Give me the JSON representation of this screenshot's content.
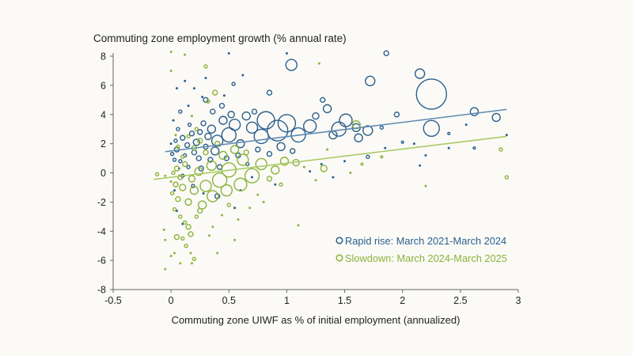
{
  "chart_data": {
    "type": "scatter",
    "title": "Commuting zone employment growth (% annual rate)",
    "xlabel": "Commuting zone UIWF as % of initial employment (annualized)",
    "ylabel": "",
    "xlim": [
      -0.5,
      3
    ],
    "ylim": [
      -8,
      8
    ],
    "xticks": [
      "-0.5",
      "0",
      "0.5",
      "1",
      "1.5",
      "2",
      "2.5",
      "3"
    ],
    "yticks": [
      "-8",
      "-6",
      "-4",
      "-2",
      "0",
      "2",
      "4",
      "6",
      "8"
    ],
    "grid": false,
    "legend_position": "bottom-right",
    "point_format": "[x, y, relative bubble size]",
    "series": [
      {
        "name": "Rapid rise: March 2021-March 2024",
        "color": "#2b5f8e",
        "trend_color": "#5e89b2",
        "trend": [
          [
            -0.05,
            1.45
          ],
          [
            2.9,
            4.35
          ]
        ],
        "points": [
          [
            0.5,
            8.2,
            1
          ],
          [
            1.0,
            8.2,
            1
          ],
          [
            1.86,
            8.2,
            2
          ],
          [
            1.04,
            7.4,
            4
          ],
          [
            2.15,
            6.8,
            3.5
          ],
          [
            1.72,
            6.3,
            3.5
          ],
          [
            0.54,
            6.1,
            1.5
          ],
          [
            0.62,
            6.7,
            1
          ],
          [
            0.12,
            6.3,
            1
          ],
          [
            0.3,
            6.5,
            1
          ],
          [
            0.85,
            5.5,
            2
          ],
          [
            1.31,
            5.0,
            2
          ],
          [
            2.25,
            5.4,
            10
          ],
          [
            0.46,
            5.3,
            1
          ],
          [
            0.3,
            5.0,
            2
          ],
          [
            0.27,
            5.2,
            1
          ],
          [
            0.05,
            5.8,
            1
          ],
          [
            0.2,
            5.8,
            1
          ],
          [
            1.51,
            3.6,
            4.5
          ],
          [
            1.35,
            4.4,
            3
          ],
          [
            1.25,
            3.9,
            2.5
          ],
          [
            1.6,
            3.1,
            3
          ],
          [
            1.7,
            2.9,
            3.5
          ],
          [
            1.2,
            3.2,
            4.5
          ],
          [
            1.0,
            3.4,
            6
          ],
          [
            0.92,
            2.9,
            7
          ],
          [
            1.1,
            2.6,
            5
          ],
          [
            0.82,
            3.6,
            6
          ],
          [
            0.78,
            2.5,
            5
          ],
          [
            0.7,
            3.1,
            4
          ],
          [
            1.4,
            2.6,
            3
          ],
          [
            1.45,
            3.0,
            5
          ],
          [
            1.62,
            2.4,
            3
          ],
          [
            1.82,
            3.1,
            1.5
          ],
          [
            1.95,
            4.0,
            2
          ],
          [
            2.25,
            3.05,
            5.5
          ],
          [
            2.62,
            4.2,
            3
          ],
          [
            2.81,
            3.8,
            3
          ],
          [
            2.0,
            2.1,
            1.2
          ],
          [
            1.85,
            1.7,
            1
          ],
          [
            2.1,
            2.0,
            1
          ],
          [
            2.4,
            2.7,
            1.2
          ],
          [
            2.55,
            3.3,
            1
          ],
          [
            2.9,
            2.6,
            1
          ],
          [
            2.4,
            1.7,
            1
          ],
          [
            2.2,
            1.2,
            1
          ],
          [
            1.7,
            1.1,
            1.5
          ],
          [
            1.5,
            0.8,
            1
          ],
          [
            1.3,
            0.6,
            1
          ],
          [
            1.2,
            0.1,
            1
          ],
          [
            1.4,
            -0.3,
            1
          ],
          [
            2.62,
            1.7,
            1.2
          ],
          [
            2.15,
            0.5,
            1
          ],
          [
            0.6,
            -1.2,
            1
          ],
          [
            0.9,
            -0.8,
            1
          ],
          [
            0.4,
            -1.6,
            2
          ],
          [
            0.55,
            -2.4,
            1
          ],
          [
            0.65,
            3.9,
            3
          ],
          [
            0.55,
            3.3,
            4
          ],
          [
            0.5,
            2.6,
            5
          ],
          [
            0.45,
            3.6,
            3
          ],
          [
            0.4,
            2.2,
            4
          ],
          [
            0.38,
            1.5,
            3
          ],
          [
            0.35,
            3.0,
            3
          ],
          [
            0.32,
            2.5,
            2.5
          ],
          [
            0.3,
            1.8,
            2
          ],
          [
            0.28,
            3.4,
            2
          ],
          [
            0.25,
            2.8,
            2
          ],
          [
            0.22,
            2.1,
            2.5
          ],
          [
            0.2,
            1.4,
            2
          ],
          [
            0.18,
            2.7,
            2
          ],
          [
            0.16,
            3.3,
            1.5
          ],
          [
            0.14,
            1.9,
            2
          ],
          [
            0.12,
            1.2,
            1.5
          ],
          [
            0.1,
            2.4,
            2
          ],
          [
            0.08,
            0.8,
            1.5
          ],
          [
            0.06,
            3.0,
            1.5
          ],
          [
            0.05,
            1.6,
            2
          ],
          [
            0.04,
            2.2,
            1.5
          ],
          [
            0.03,
            0.9,
            1.5
          ],
          [
            0.02,
            3.6,
            1
          ],
          [
            0.01,
            1.3,
            1.5
          ],
          [
            0.0,
            2.0,
            1
          ],
          [
            0.6,
            2.0,
            3
          ],
          [
            0.58,
            1.2,
            2
          ],
          [
            0.48,
            1.0,
            2
          ],
          [
            0.42,
            0.4,
            2
          ],
          [
            0.34,
            0.9,
            2
          ],
          [
            0.26,
            0.3,
            2
          ],
          [
            0.24,
            1.0,
            2
          ],
          [
            0.15,
            0.4,
            1.5
          ],
          [
            0.1,
            -0.2,
            1.5
          ],
          [
            0.07,
            0.3,
            1
          ],
          [
            0.19,
            -0.9,
            1.5
          ],
          [
            0.28,
            -1.4,
            1
          ],
          [
            0.08,
            4.2,
            1.5
          ],
          [
            0.15,
            4.6,
            1
          ],
          [
            0.36,
            4.2,
            2
          ],
          [
            0.44,
            4.6,
            2
          ],
          [
            0.52,
            4.0,
            2.5
          ],
          [
            0.72,
            4.2,
            2
          ],
          [
            0.75,
            1.6,
            2
          ],
          [
            0.85,
            1.3,
            2
          ],
          [
            0.95,
            1.8,
            3
          ],
          [
            1.05,
            1.5,
            2
          ],
          [
            0.66,
            0.6,
            1.5
          ],
          [
            0.7,
            -0.3,
            1
          ],
          [
            0.03,
            -1.2,
            1
          ],
          [
            0.05,
            -2.6,
            1
          ],
          [
            0.1,
            -3.5,
            1
          ]
        ]
      },
      {
        "name": "Slowdown: March 2024-March 2025",
        "color": "#8bb33b",
        "trend_color": "#a6c95f",
        "trend": [
          [
            -0.15,
            -0.45
          ],
          [
            2.9,
            2.5
          ]
        ],
        "points": [
          [
            0.0,
            8.3,
            1
          ],
          [
            0.12,
            8.1,
            1
          ],
          [
            0.0,
            7.0,
            1
          ],
          [
            0.3,
            7.3,
            1.5
          ],
          [
            1.28,
            7.5,
            1
          ],
          [
            0.38,
            5.5,
            2
          ],
          [
            1.6,
            3.3,
            3
          ],
          [
            2.9,
            -0.3,
            1.5
          ],
          [
            2.85,
            1.6,
            1.5
          ],
          [
            1.82,
            1.1,
            1.2
          ],
          [
            1.65,
            0.6,
            1.2
          ],
          [
            1.32,
            0.3,
            2.5
          ],
          [
            1.1,
            -3.6,
            1
          ],
          [
            0.55,
            -4.6,
            1
          ],
          [
            2.2,
            -0.9,
            1
          ],
          [
            1.35,
            1.6,
            1
          ],
          [
            1.55,
            0.0,
            1
          ],
          [
            0.32,
            4.9,
            1.5
          ],
          [
            0.18,
            3.9,
            1
          ],
          [
            0.98,
            0.8,
            3
          ],
          [
            1.08,
            0.7,
            2.5
          ],
          [
            0.9,
            0.2,
            3
          ],
          [
            0.78,
            0.6,
            4
          ],
          [
            0.7,
            -0.2,
            5
          ],
          [
            0.62,
            0.9,
            4
          ],
          [
            0.6,
            -0.8,
            4.5
          ],
          [
            0.5,
            0.2,
            5
          ],
          [
            0.48,
            -1.2,
            4
          ],
          [
            0.42,
            -0.5,
            5
          ],
          [
            0.36,
            -1.6,
            4
          ],
          [
            0.35,
            0.5,
            3.5
          ],
          [
            0.3,
            -0.9,
            4
          ],
          [
            0.27,
            -2.2,
            3
          ],
          [
            0.24,
            0.1,
            3
          ],
          [
            0.2,
            -1.2,
            3
          ],
          [
            0.18,
            -0.4,
            2.5
          ],
          [
            0.15,
            -2.0,
            2.5
          ],
          [
            0.12,
            0.6,
            2
          ],
          [
            0.1,
            -1.0,
            2.5
          ],
          [
            0.08,
            -0.3,
            2
          ],
          [
            0.06,
            -1.8,
            2
          ],
          [
            0.05,
            0.3,
            2
          ],
          [
            0.04,
            -0.8,
            2
          ],
          [
            0.03,
            -2.5,
            1.5
          ],
          [
            0.02,
            0.0,
            1.5
          ],
          [
            0.01,
            -1.4,
            1.5
          ],
          [
            0.0,
            -0.6,
            1
          ],
          [
            -0.05,
            -0.2,
            1
          ],
          [
            -0.12,
            -0.1,
            1.5
          ],
          [
            0.08,
            -3.0,
            1.5
          ],
          [
            0.12,
            -3.4,
            1.5
          ],
          [
            0.15,
            -3.7,
            2
          ],
          [
            0.05,
            -4.4,
            2
          ],
          [
            0.1,
            -4.5,
            1.5
          ],
          [
            0.17,
            -4.2,
            2
          ],
          [
            0.13,
            -5.0,
            1.5
          ],
          [
            0.17,
            -5.5,
            1
          ],
          [
            0.03,
            -5.5,
            1
          ],
          [
            0.2,
            -5.9,
            1.5
          ],
          [
            0.08,
            -6.2,
            1
          ],
          [
            0.18,
            -6.2,
            1
          ],
          [
            -0.05,
            -6.6,
            1
          ],
          [
            -0.05,
            -4.6,
            1
          ],
          [
            -0.06,
            -3.9,
            1
          ],
          [
            0.0,
            -5.7,
            1
          ],
          [
            0.36,
            -3.7,
            1
          ],
          [
            0.4,
            -5.5,
            1
          ],
          [
            0.33,
            -4.3,
            1
          ],
          [
            0.22,
            -3.0,
            1.5
          ],
          [
            0.25,
            -2.6,
            2
          ],
          [
            0.44,
            -2.9,
            1
          ],
          [
            0.5,
            -2.2,
            1.5
          ],
          [
            0.58,
            -3.2,
            1
          ],
          [
            0.55,
            1.6,
            3
          ],
          [
            0.45,
            1.2,
            3
          ],
          [
            0.4,
            2.0,
            2
          ],
          [
            0.3,
            1.4,
            2
          ],
          [
            0.25,
            2.2,
            2
          ],
          [
            0.2,
            1.7,
            2
          ],
          [
            0.22,
            3.0,
            1.5
          ],
          [
            0.15,
            2.5,
            1.5
          ],
          [
            0.1,
            1.1,
            1.5
          ],
          [
            0.06,
            1.8,
            1.5
          ],
          [
            0.04,
            2.6,
            1
          ],
          [
            0.65,
            1.4,
            2
          ],
          [
            0.85,
            -0.4,
            2
          ],
          [
            0.95,
            -0.8,
            1.5
          ],
          [
            1.15,
            0.4,
            1
          ],
          [
            1.25,
            -0.5,
            1
          ],
          [
            0.75,
            -1.5,
            1
          ],
          [
            0.68,
            -2.4,
            1
          ],
          [
            0.8,
            -2.0,
            1
          ]
        ]
      }
    ]
  }
}
